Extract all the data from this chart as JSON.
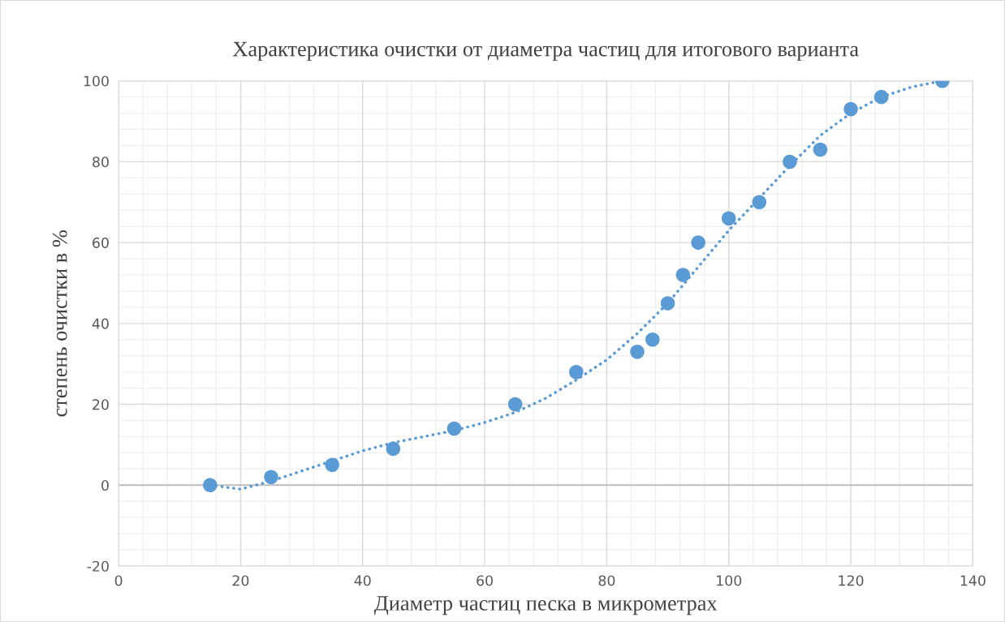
{
  "chart_data": {
    "type": "scatter",
    "title": "Характеристика очистки от диаметра частиц для итогового варианта",
    "xlabel": "Диаметр частиц песка в микрометрах",
    "ylabel": "степень очистки в %",
    "xlim": [
      0,
      140
    ],
    "xticks": [
      0,
      20,
      40,
      60,
      80,
      100,
      120,
      140
    ],
    "ylim": [
      -20,
      100
    ],
    "yticks": [
      -20,
      0,
      20,
      40,
      60,
      80,
      100
    ],
    "grid": true,
    "series": [
      {
        "color": "#5b9bd5",
        "marker": "circle",
        "x": [
          15,
          25,
          35,
          45,
          55,
          65,
          75,
          85,
          87.5,
          90,
          92.5,
          95,
          100,
          105,
          110,
          115,
          120,
          125,
          135
        ],
        "values": [
          0,
          2,
          5,
          9,
          14,
          20,
          28,
          33,
          36,
          45,
          52,
          60,
          66,
          70,
          80,
          83,
          93,
          96,
          100
        ]
      },
      {
        "type": "line",
        "color": "#5b9bd5",
        "line_style": "dotted",
        "x": [
          15,
          20,
          25,
          30,
          35,
          40,
          45,
          50,
          55,
          60,
          65,
          70,
          75,
          80,
          85,
          90,
          95,
          100,
          105,
          110,
          115,
          120,
          125,
          130,
          135
        ],
        "values": [
          0,
          -1,
          1,
          3.5,
          6,
          8.5,
          10.5,
          12,
          13.5,
          15.5,
          18,
          21.5,
          26,
          31,
          37.5,
          45,
          54,
          63,
          71,
          79,
          86.5,
          92,
          96,
          98.5,
          100
        ]
      }
    ]
  }
}
